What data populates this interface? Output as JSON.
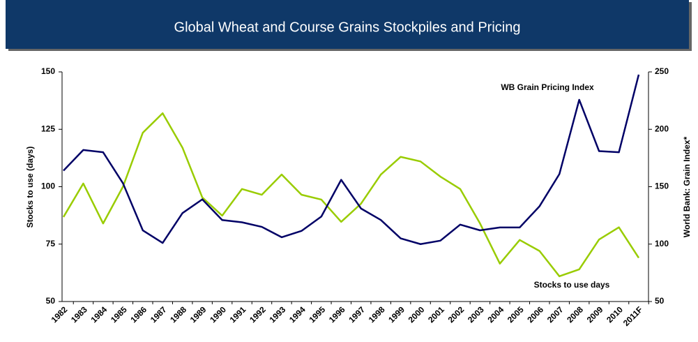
{
  "chart_data": {
    "type": "line",
    "title": "Global Wheat and Course Grains Stockpiles and Pricing",
    "ylabel": "Stocks to use (days)",
    "y2label": "World Bank: Grain Index*",
    "categories": [
      "1982",
      "1983",
      "1984",
      "1985",
      "1986",
      "1987",
      "1988",
      "1989",
      "1990",
      "1991",
      "1992",
      "1993",
      "1994",
      "1995",
      "1996",
      "1997",
      "1998",
      "1999",
      "2000",
      "2001",
      "2002",
      "2003",
      "2004",
      "2005",
      "2006",
      "2007",
      "2008",
      "2009",
      "2010",
      "2011F"
    ],
    "series": [
      {
        "name": "Stocks to use days",
        "color": "#99cc00",
        "axis": "y",
        "values": [
          86.8,
          101.4,
          84,
          100,
          123.5,
          132,
          117,
          95.3,
          87.4,
          99,
          96.5,
          105.3,
          96.5,
          94.4,
          84.7,
          92.6,
          105.3,
          113,
          111,
          104.4,
          99,
          84,
          66.5,
          76.8,
          72,
          61,
          64,
          77,
          82.3,
          69
        ]
      },
      {
        "name": "WB Grain Pricing  Index",
        "color": "#000066",
        "axis": "y2",
        "values": [
          164,
          182,
          180,
          153,
          112,
          101,
          127,
          139,
          121,
          119,
          115,
          106,
          111.5,
          124,
          156,
          131,
          121,
          105,
          100,
          103,
          117,
          112,
          114.5,
          114.5,
          133,
          161,
          225.7,
          181,
          180,
          247.6
        ]
      }
    ],
    "ylim": [
      50,
      150
    ],
    "yticks": [
      50,
      75,
      100,
      125,
      150
    ],
    "y2lim": [
      50,
      250
    ],
    "y2ticks": [
      50,
      100,
      150,
      200,
      250
    ]
  }
}
